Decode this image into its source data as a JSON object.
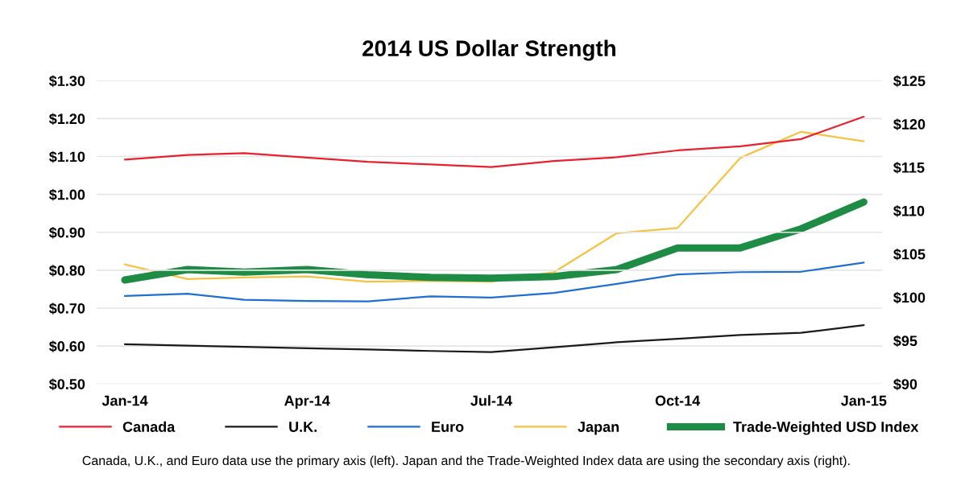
{
  "chart_data": {
    "type": "line",
    "title": "2014 US Dollar Strength",
    "x": [
      "2014-01",
      "2014-02",
      "2014-03",
      "2014-04",
      "2014-05",
      "2014-06",
      "2014-07",
      "2014-08",
      "2014-09",
      "2014-10",
      "2014-11",
      "2014-12",
      "2015-01"
    ],
    "series": [
      {
        "name": "Canada",
        "color": "#e8212f",
        "values": [
          1.092,
          1.104,
          1.109,
          1.097,
          1.086,
          1.079,
          1.072,
          1.088,
          1.098,
          1.116,
          1.127,
          1.146,
          1.205
        ]
      },
      {
        "name": "U.K.",
        "color": "#1a1a1a",
        "values": [
          0.605,
          0.601,
          0.598,
          0.594,
          0.591,
          0.587,
          0.584,
          0.597,
          0.61,
          0.619,
          0.629,
          0.635,
          0.655
        ]
      },
      {
        "name": "Euro",
        "color": "#1f6fd1",
        "values": [
          0.732,
          0.738,
          0.722,
          0.719,
          0.718,
          0.731,
          0.728,
          0.74,
          0.764,
          0.789,
          0.795,
          0.796,
          0.82
        ]
      },
      {
        "name": "Japan",
        "color": "#f5c342",
        "axis": "y2",
        "values": [
          103.8,
          102.1,
          102.3,
          102.4,
          101.8,
          101.9,
          101.8,
          102.9,
          107.4,
          108.0,
          116.1,
          119.1,
          118.0
        ]
      },
      {
        "name": "Trade-Weighted USD Index",
        "color": "#1e8c45",
        "axis": "y2",
        "values": [
          102.0,
          103.2,
          102.9,
          103.2,
          102.6,
          102.3,
          102.2,
          102.4,
          103.2,
          105.7,
          105.7,
          107.9,
          111.0
        ]
      }
    ],
    "xlim": [
      "2013-12-18",
      "2015-01-10"
    ],
    "xticks": [
      {
        "value": "2014-01",
        "label": "Jan-14"
      },
      {
        "value": "2014-04",
        "label": "Apr-14"
      },
      {
        "value": "2014-07",
        "label": "Jul-14"
      },
      {
        "value": "2014-10",
        "label": "Oct-14"
      },
      {
        "value": "2015-01",
        "label": "Jan-15"
      }
    ],
    "ylim": [
      0.5,
      1.3
    ],
    "yticks": [
      {
        "value": 0.5,
        "label": "$0.50"
      },
      {
        "value": 0.6,
        "label": "$0.60"
      },
      {
        "value": 0.7,
        "label": "$0.70"
      },
      {
        "value": 0.8,
        "label": "$0.80"
      },
      {
        "value": 0.9,
        "label": "$0.90"
      },
      {
        "value": 1.0,
        "label": "$1.00"
      },
      {
        "value": 1.1,
        "label": "$1.10"
      },
      {
        "value": 1.2,
        "label": "$1.20"
      },
      {
        "value": 1.3,
        "label": "$1.30"
      }
    ],
    "y2lim": [
      90,
      125
    ],
    "y2ticks": [
      {
        "value": 90,
        "label": "$90"
      },
      {
        "value": 95,
        "label": "$95"
      },
      {
        "value": 100,
        "label": "$100"
      },
      {
        "value": 105,
        "label": "$105"
      },
      {
        "value": 110,
        "label": "$110"
      },
      {
        "value": 115,
        "label": "$115"
      },
      {
        "value": 120,
        "label": "$120"
      },
      {
        "value": 125,
        "label": "$125"
      }
    ],
    "grid": "y",
    "legend": "bottom",
    "marker": "none",
    "line_style": "solid",
    "annotations": [
      "Canada, U.K., and Euro data use the primary axis (left). Japan and the Trade-Weighted Index data are using the secondary axis (right)."
    ]
  }
}
